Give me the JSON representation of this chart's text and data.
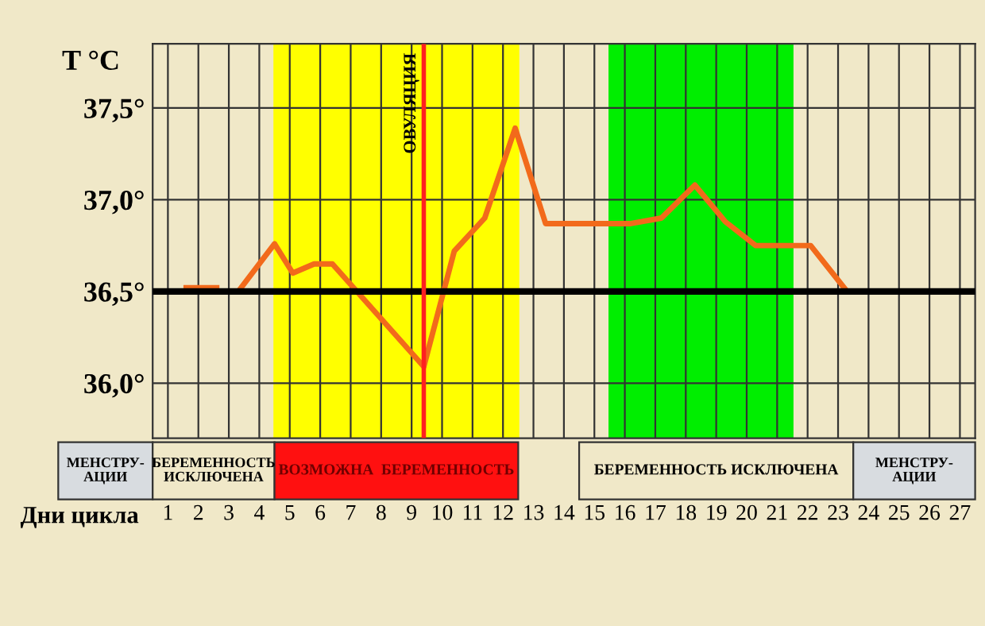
{
  "chart_data": {
    "type": "line",
    "title": "T °C",
    "xlabel": "Дни цикла",
    "x": [
      1.6,
      2.6,
      3.3,
      3.4,
      4.5,
      5.1,
      5.8,
      6.4,
      9.4,
      10.4,
      11.4,
      12.4,
      13.4,
      16.2,
      17.2,
      18.3,
      19.3,
      20.3,
      22.1,
      23.2
    ],
    "series": [
      {
        "color": "#f26a1b",
        "values": [
          36.52,
          36.52,
          null,
          36.52,
          36.76,
          36.6,
          36.65,
          36.65,
          36.09,
          36.72,
          36.9,
          37.39,
          36.87,
          36.87,
          36.9,
          37.08,
          36.88,
          36.75,
          36.75,
          36.52
        ]
      }
    ],
    "xlim": [
      0.5,
      27.5
    ],
    "xticks": [
      1,
      2,
      3,
      4,
      5,
      6,
      7,
      8,
      9,
      10,
      11,
      12,
      13,
      14,
      15,
      16,
      17,
      18,
      19,
      20,
      21,
      22,
      23,
      24,
      25,
      26,
      27
    ],
    "ylim": [
      35.7,
      37.85
    ],
    "yticks": [
      {
        "value": 36.0,
        "label": "36,0°"
      },
      {
        "value": 36.5,
        "label": "36,5°"
      },
      {
        "value": 37.0,
        "label": "37,0°"
      },
      {
        "value": 37.5,
        "label": "37,5°"
      }
    ],
    "grid": true,
    "marker": "none",
    "line_style": "solid",
    "legend": false,
    "ref_lines": [
      {
        "axis": "y",
        "value": 36.5,
        "color": "#000000"
      },
      {
        "axis": "x",
        "value": 9.4,
        "label": "ОВУЛЯЦИЯ",
        "color": "#ff2020"
      }
    ],
    "bands": [
      {
        "axis": "x",
        "from": 4.5,
        "to": 12.5,
        "color": "#ffff00"
      },
      {
        "axis": "x",
        "from": 15.5,
        "to": 21.5,
        "color": "#00ee00"
      }
    ],
    "annotations": [
      "МЕНСТРУ-\nАЦИИ",
      "БЕРЕМЕННОСТЬ\nИСКЛЮЧЕНА",
      "ВОЗМОЖНА  БЕРЕМЕННОСТЬ",
      "БЕРЕМЕННОСТЬ ИСКЛЮЧЕНА",
      "МЕНСТРУ-\nАЦИИ"
    ]
  }
}
